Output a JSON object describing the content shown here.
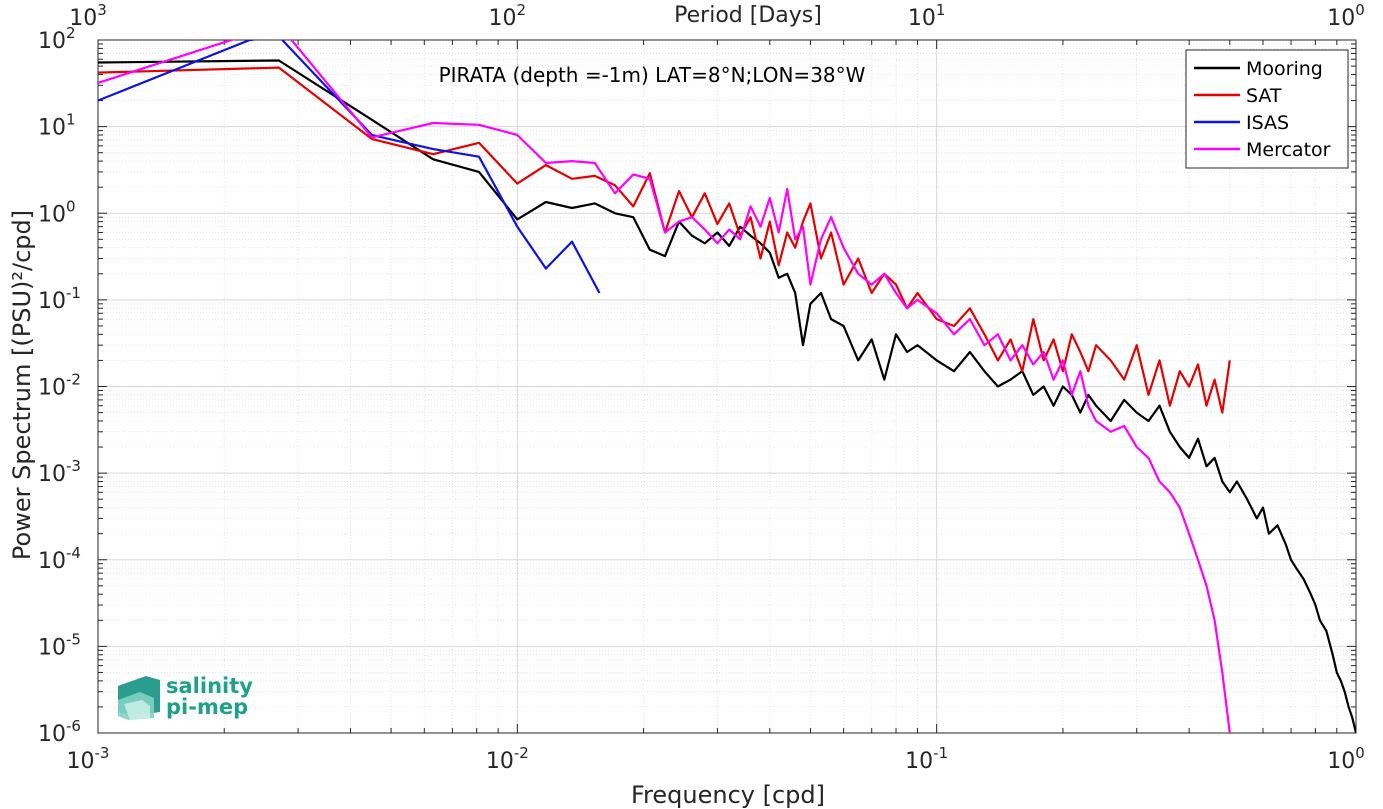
{
  "chart_data": {
    "type": "line",
    "title": "PIRATA (depth =-1m) LAT=8°N;LON=38°W",
    "xlabel": "Frequency [cpd]",
    "ylabel": "Power Spectrum [(PSU)²/cpd]",
    "top_xlabel": "Period [Days]",
    "xscale": "log",
    "yscale": "log",
    "xlim": [
      0.001,
      1
    ],
    "ylim": [
      1e-06,
      100
    ],
    "grid": true,
    "legend_placement": "top-right",
    "x_ticks": [
      {
        "base": "10",
        "exp": "-3"
      },
      {
        "base": "10",
        "exp": "-2"
      },
      {
        "base": "10",
        "exp": "-1"
      },
      {
        "base": "10",
        "exp": "0"
      }
    ],
    "top_ticks": [
      {
        "base": "10",
        "exp": "3"
      },
      {
        "base": "10",
        "exp": "2"
      },
      {
        "base": "10",
        "exp": "1"
      },
      {
        "base": "10",
        "exp": "0"
      }
    ],
    "y_ticks": [
      {
        "base": "10",
        "exp": "-6"
      },
      {
        "base": "10",
        "exp": "-5"
      },
      {
        "base": "10",
        "exp": "-4"
      },
      {
        "base": "10",
        "exp": "-3"
      },
      {
        "base": "10",
        "exp": "-2"
      },
      {
        "base": "10",
        "exp": "-1"
      },
      {
        "base": "10",
        "exp": "0"
      },
      {
        "base": "10",
        "exp": "1"
      },
      {
        "base": "10",
        "exp": "2"
      }
    ],
    "series": [
      {
        "name": "Mooring",
        "color": "#000000",
        "x": [
          0.001,
          0.0027,
          0.0045,
          0.0063,
          0.0081,
          0.01,
          0.0117,
          0.0135,
          0.0153,
          0.0171,
          0.0189,
          0.0207,
          0.0225,
          0.0243,
          0.0261,
          0.028,
          0.03,
          0.032,
          0.034,
          0.036,
          0.038,
          0.04,
          0.042,
          0.044,
          0.046,
          0.048,
          0.05,
          0.053,
          0.056,
          0.06,
          0.065,
          0.07,
          0.075,
          0.08,
          0.085,
          0.09,
          0.1,
          0.11,
          0.12,
          0.13,
          0.14,
          0.15,
          0.16,
          0.17,
          0.18,
          0.19,
          0.2,
          0.21,
          0.22,
          0.23,
          0.24,
          0.26,
          0.28,
          0.3,
          0.32,
          0.34,
          0.36,
          0.38,
          0.4,
          0.42,
          0.44,
          0.46,
          0.48,
          0.5,
          0.52,
          0.55,
          0.58,
          0.6,
          0.62,
          0.65,
          0.68,
          0.7,
          0.72,
          0.75,
          0.78,
          0.8,
          0.82,
          0.85,
          0.88,
          0.9,
          0.92,
          0.94,
          0.96,
          0.98,
          1.0
        ],
        "values": [
          55,
          58,
          12,
          4.2,
          3.0,
          0.85,
          1.35,
          1.15,
          1.3,
          1.0,
          0.9,
          0.38,
          0.32,
          0.8,
          0.55,
          0.45,
          0.6,
          0.42,
          0.7,
          0.55,
          0.45,
          0.35,
          0.18,
          0.2,
          0.12,
          0.03,
          0.09,
          0.12,
          0.06,
          0.05,
          0.02,
          0.035,
          0.012,
          0.04,
          0.025,
          0.03,
          0.02,
          0.015,
          0.025,
          0.015,
          0.01,
          0.012,
          0.015,
          0.008,
          0.01,
          0.006,
          0.01,
          0.008,
          0.005,
          0.008,
          0.006,
          0.004,
          0.007,
          0.005,
          0.004,
          0.006,
          0.003,
          0.002,
          0.0015,
          0.0025,
          0.0012,
          0.0015,
          0.0008,
          0.0006,
          0.0008,
          0.0005,
          0.0003,
          0.0004,
          0.0002,
          0.00025,
          0.00015,
          0.0001,
          8e-05,
          6e-05,
          4e-05,
          3e-05,
          2e-05,
          1.5e-05,
          8e-06,
          5e-06,
          4e-06,
          3e-06,
          2e-06,
          1.5e-06,
          1e-06
        ]
      },
      {
        "name": "SAT",
        "color": "#e60000",
        "x": [
          0.001,
          0.0027,
          0.0045,
          0.0063,
          0.0081,
          0.01,
          0.0117,
          0.0135,
          0.0153,
          0.0171,
          0.0189,
          0.0207,
          0.0225,
          0.0243,
          0.0261,
          0.028,
          0.03,
          0.032,
          0.034,
          0.036,
          0.038,
          0.04,
          0.042,
          0.044,
          0.046,
          0.048,
          0.05,
          0.053,
          0.056,
          0.06,
          0.065,
          0.07,
          0.075,
          0.08,
          0.085,
          0.09,
          0.1,
          0.11,
          0.12,
          0.13,
          0.14,
          0.15,
          0.16,
          0.17,
          0.18,
          0.19,
          0.2,
          0.21,
          0.22,
          0.23,
          0.24,
          0.26,
          0.28,
          0.3,
          0.32,
          0.34,
          0.36,
          0.38,
          0.4,
          0.42,
          0.44,
          0.46,
          0.48,
          0.5
        ],
        "values": [
          42,
          48,
          7.2,
          4.8,
          6.5,
          2.2,
          3.6,
          2.5,
          2.7,
          2.1,
          1.2,
          2.9,
          0.6,
          1.8,
          0.9,
          1.7,
          0.75,
          1.3,
          0.55,
          0.9,
          0.3,
          0.8,
          0.25,
          0.6,
          0.4,
          0.8,
          1.3,
          0.3,
          0.6,
          0.15,
          0.3,
          0.12,
          0.2,
          0.15,
          0.08,
          0.12,
          0.06,
          0.05,
          0.08,
          0.04,
          0.02,
          0.035,
          0.015,
          0.06,
          0.02,
          0.035,
          0.015,
          0.04,
          0.025,
          0.015,
          0.03,
          0.02,
          0.012,
          0.03,
          0.008,
          0.02,
          0.006,
          0.015,
          0.01,
          0.018,
          0.006,
          0.012,
          0.005,
          0.02
        ]
      },
      {
        "name": "ISAS",
        "color": "#0a14e6",
        "x": [
          0.001,
          0.0023,
          0.0027,
          0.0045,
          0.0063,
          0.0081,
          0.01,
          0.0117,
          0.0135,
          0.0157
        ],
        "values": [
          20,
          100,
          110,
          8.0,
          5.5,
          4.5,
          0.7,
          0.23,
          0.47,
          0.12
        ]
      },
      {
        "name": "Mercator",
        "color": "#ff00ff",
        "x": [
          0.001,
          0.0027,
          0.0045,
          0.0063,
          0.0081,
          0.01,
          0.0117,
          0.0135,
          0.0153,
          0.0171,
          0.0189,
          0.0207,
          0.0225,
          0.0243,
          0.0261,
          0.028,
          0.03,
          0.032,
          0.034,
          0.036,
          0.038,
          0.04,
          0.042,
          0.044,
          0.046,
          0.048,
          0.05,
          0.053,
          0.056,
          0.06,
          0.065,
          0.07,
          0.075,
          0.08,
          0.085,
          0.09,
          0.1,
          0.11,
          0.12,
          0.13,
          0.14,
          0.15,
          0.16,
          0.17,
          0.18,
          0.19,
          0.2,
          0.21,
          0.22,
          0.23,
          0.24,
          0.26,
          0.28,
          0.3,
          0.32,
          0.34,
          0.36,
          0.38,
          0.4,
          0.42,
          0.44,
          0.46,
          0.48,
          0.5
        ],
        "values": [
          32,
          150,
          7.5,
          11,
          10.5,
          8.0,
          3.8,
          4.0,
          3.8,
          1.7,
          2.8,
          2.5,
          0.6,
          0.8,
          0.9,
          0.65,
          0.45,
          0.65,
          0.5,
          1.2,
          0.7,
          1.5,
          0.6,
          1.9,
          0.5,
          0.7,
          0.15,
          0.5,
          0.9,
          0.4,
          0.2,
          0.15,
          0.2,
          0.12,
          0.08,
          0.1,
          0.07,
          0.04,
          0.06,
          0.03,
          0.04,
          0.02,
          0.03,
          0.018,
          0.025,
          0.012,
          0.02,
          0.008,
          0.015,
          0.006,
          0.004,
          0.003,
          0.0035,
          0.002,
          0.0015,
          0.0008,
          0.0006,
          0.0004,
          0.0002,
          0.0001,
          5e-05,
          2e-05,
          5e-06,
          1e-06
        ]
      }
    ]
  },
  "logo": {
    "line1": "salinity",
    "line2": "pi-mep"
  }
}
